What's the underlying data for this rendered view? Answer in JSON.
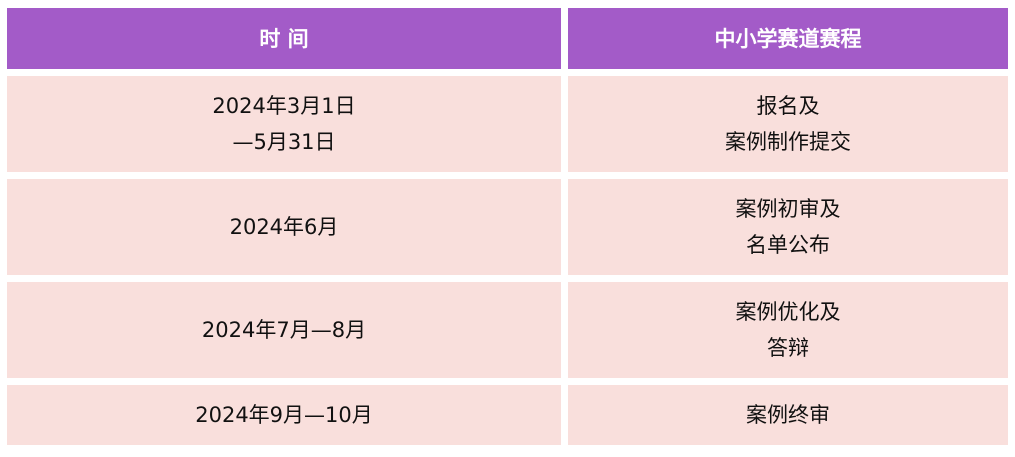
{
  "colors": {
    "header_bg": "#a35bc8",
    "row_bg": "#f9dfdc"
  },
  "header": [
    "时 间",
    "中小学赛道赛程"
  ],
  "rows": [
    {
      "time": [
        "2024年3月1日",
        "—5月31日"
      ],
      "stage": [
        "报名及",
        "案例制作提交"
      ]
    },
    {
      "time": [
        "2024年6月"
      ],
      "stage": [
        "案例初审及",
        "名单公布"
      ]
    },
    {
      "time": [
        "2024年7月—8月"
      ],
      "stage": [
        "案例优化及",
        "答辩"
      ]
    },
    {
      "time": [
        "2024年9月—10月"
      ],
      "stage": [
        "案例终审"
      ]
    }
  ]
}
